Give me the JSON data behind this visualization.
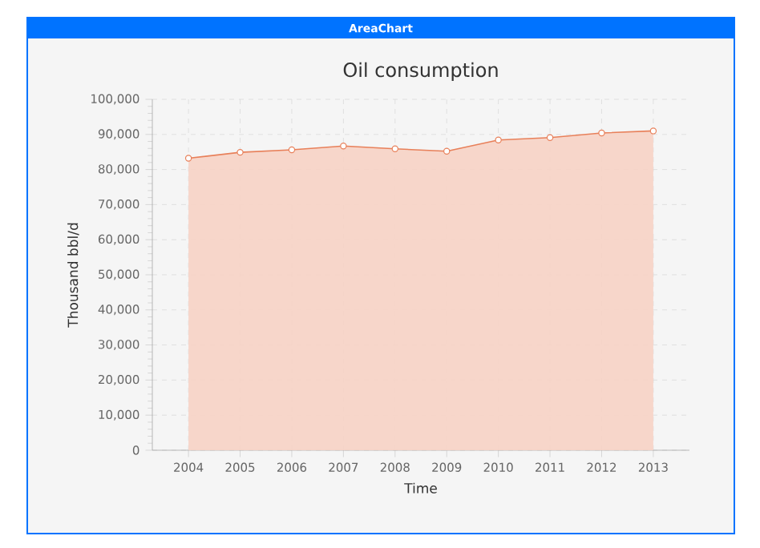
{
  "chart_data": {
    "type": "area",
    "title": "Oil consumption",
    "xlabel": "Time",
    "ylabel": "Thousand bbl/d",
    "annotations": [
      "AreaChart"
    ],
    "x": [
      2004,
      2005,
      2006,
      2007,
      2008,
      2009,
      2010,
      2011,
      2012,
      2013
    ],
    "values": [
      83200,
      84900,
      85600,
      86700,
      85900,
      85200,
      88400,
      89100,
      90400,
      91000
    ],
    "color": "#e8805a",
    "marker": "circle",
    "grid": true,
    "xlim": [
      2003.3,
      2013.7
    ],
    "xticks": [
      2004,
      2005,
      2006,
      2007,
      2008,
      2009,
      2010,
      2011,
      2012,
      2013
    ],
    "ylim": [
      0,
      100000
    ],
    "yticks": [
      {
        "value": 0,
        "label": "0"
      },
      {
        "value": 10000,
        "label": "10,000"
      },
      {
        "value": 20000,
        "label": "20,000"
      },
      {
        "value": 30000,
        "label": "30,000"
      },
      {
        "value": 40000,
        "label": "40,000"
      },
      {
        "value": 50000,
        "label": "50,000"
      },
      {
        "value": 60000,
        "label": "60,000"
      },
      {
        "value": 70000,
        "label": "70,000"
      },
      {
        "value": 80000,
        "label": "80,000"
      },
      {
        "value": 90000,
        "label": "90,000"
      },
      {
        "value": 100000,
        "label": "100,000"
      }
    ]
  }
}
